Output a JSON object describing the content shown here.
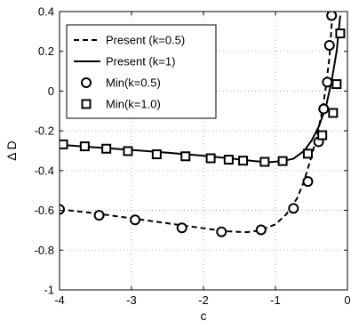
{
  "chart_data": {
    "type": "line",
    "xlabel": "c",
    "ylabel": "Δ D",
    "xlim": [
      -4,
      0
    ],
    "ylim": [
      -1,
      0.4
    ],
    "xticks": [
      "-4",
      "-3",
      "-2",
      "-1",
      "0"
    ],
    "yticks": [
      "-1",
      "-0.8",
      "-0.6",
      "-0.4",
      "-0.2",
      "0",
      "0.2",
      "0.4"
    ],
    "grid": true,
    "legend_position": "top-left",
    "legend": [
      "Present (k=0.5)",
      "Present (k=1)",
      "Min(k=0.5)",
      "Min(k=1.0)"
    ],
    "series": [
      {
        "name": "Present (k=0.5)",
        "style": "dashed",
        "x": [
          -4,
          -3.5,
          -3,
          -2.5,
          -2,
          -1.7,
          -1.4,
          -1.2,
          -1.0,
          -0.85,
          -0.7,
          -0.6,
          -0.5,
          -0.42,
          -0.35,
          -0.3,
          -0.25,
          -0.21
        ],
        "y": [
          -0.595,
          -0.615,
          -0.64,
          -0.665,
          -0.69,
          -0.705,
          -0.71,
          -0.7,
          -0.67,
          -0.62,
          -0.54,
          -0.45,
          -0.33,
          -0.22,
          -0.1,
          0.02,
          0.17,
          0.38
        ]
      },
      {
        "name": "Present (k=1)",
        "style": "solid",
        "x": [
          -4,
          -3.5,
          -3,
          -2.5,
          -2,
          -1.6,
          -1.3,
          -1.1,
          -0.9,
          -0.75,
          -0.6,
          -0.5,
          -0.4,
          -0.3,
          -0.22,
          -0.15,
          -0.1
        ],
        "y": [
          -0.27,
          -0.283,
          -0.296,
          -0.31,
          -0.325,
          -0.34,
          -0.352,
          -0.358,
          -0.352,
          -0.34,
          -0.3,
          -0.25,
          -0.18,
          -0.08,
          0.05,
          0.2,
          0.38
        ]
      },
      {
        "name": "Min(k=0.5)",
        "marker": "circle",
        "x": [
          -4.0,
          -3.45,
          -2.95,
          -2.3,
          -1.75,
          -1.2,
          -0.75,
          -0.55,
          -0.4,
          -0.33,
          -0.28,
          -0.25,
          -0.22
        ],
        "y": [
          -0.595,
          -0.625,
          -0.648,
          -0.688,
          -0.708,
          -0.698,
          -0.59,
          -0.455,
          -0.255,
          -0.09,
          0.045,
          0.23,
          0.38
        ]
      },
      {
        "name": "Min(k=1.0)",
        "marker": "square",
        "x": [
          -3.95,
          -3.65,
          -3.35,
          -3.05,
          -2.65,
          -2.25,
          -1.9,
          -1.65,
          -1.45,
          -1.15,
          -0.9,
          -0.55,
          -0.35,
          -0.2,
          -0.15,
          -0.1
        ],
        "y": [
          -0.268,
          -0.278,
          -0.29,
          -0.302,
          -0.318,
          -0.328,
          -0.338,
          -0.345,
          -0.35,
          -0.356,
          -0.352,
          -0.315,
          -0.222,
          -0.11,
          0.035,
          0.29
        ]
      }
    ]
  }
}
